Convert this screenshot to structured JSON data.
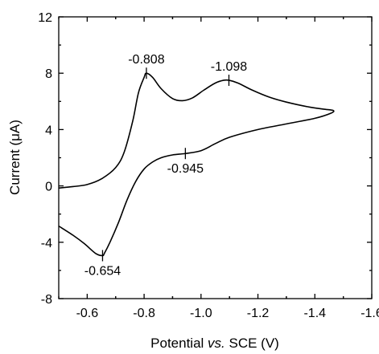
{
  "chart_data": {
    "type": "line",
    "xlabel_parts": [
      "Potential ",
      "vs.",
      " SCE (V)"
    ],
    "ylabel": "Current (μA)",
    "xlim": [
      -0.5,
      -1.6
    ],
    "ylim": [
      -8,
      12
    ],
    "x_ticks": [
      -0.6,
      -0.8,
      -1.0,
      -1.2,
      -1.4,
      -1.6
    ],
    "y_ticks": [
      -8,
      -4,
      0,
      4,
      8,
      12
    ],
    "x_tick_labels": [
      "-0.6",
      "-0.8",
      "-1.0",
      "-1.2",
      "-1.4",
      "-1.6"
    ],
    "y_tick_labels": [
      "-8",
      "-4",
      "0",
      "4",
      "8",
      "12"
    ],
    "grid": false,
    "series": [
      {
        "name": "",
        "points": [
          [
            -0.5,
            -0.15
          ],
          [
            -0.55,
            -0.05
          ],
          [
            -0.6,
            0.1
          ],
          [
            -0.65,
            0.5
          ],
          [
            -0.7,
            1.3
          ],
          [
            -0.73,
            2.4
          ],
          [
            -0.76,
            4.6
          ],
          [
            -0.78,
            6.6
          ],
          [
            -0.8,
            7.7
          ],
          [
            -0.808,
            8.0
          ],
          [
            -0.83,
            7.7
          ],
          [
            -0.86,
            6.9
          ],
          [
            -0.9,
            6.2
          ],
          [
            -0.935,
            6.05
          ],
          [
            -0.97,
            6.25
          ],
          [
            -1.01,
            6.8
          ],
          [
            -1.05,
            7.3
          ],
          [
            -1.08,
            7.5
          ],
          [
            -1.098,
            7.5
          ],
          [
            -1.13,
            7.3
          ],
          [
            -1.18,
            6.8
          ],
          [
            -1.24,
            6.3
          ],
          [
            -1.3,
            5.95
          ],
          [
            -1.38,
            5.6
          ],
          [
            -1.43,
            5.45
          ],
          [
            -1.465,
            5.35
          ],
          [
            -1.455,
            5.15
          ],
          [
            -1.4,
            4.8
          ],
          [
            -1.3,
            4.4
          ],
          [
            -1.2,
            4.0
          ],
          [
            -1.1,
            3.45
          ],
          [
            -1.05,
            3.0
          ],
          [
            -1.0,
            2.5
          ],
          [
            -0.945,
            2.3
          ],
          [
            -0.9,
            2.2
          ],
          [
            -0.86,
            2.0
          ],
          [
            -0.83,
            1.7
          ],
          [
            -0.8,
            1.2
          ],
          [
            -0.77,
            0.3
          ],
          [
            -0.74,
            -1.0
          ],
          [
            -0.71,
            -2.6
          ],
          [
            -0.68,
            -4.0
          ],
          [
            -0.66,
            -4.8
          ],
          [
            -0.654,
            -4.95
          ],
          [
            -0.63,
            -4.8
          ],
          [
            -0.59,
            -4.1
          ],
          [
            -0.55,
            -3.5
          ],
          [
            -0.5,
            -2.85
          ]
        ]
      }
    ],
    "annotations": [
      {
        "label": "-0.808",
        "x": -0.808,
        "y": 8.0,
        "placement": "above"
      },
      {
        "label": "-1.098",
        "x": -1.098,
        "y": 7.5,
        "placement": "above"
      },
      {
        "label": "-0.945",
        "x": -0.945,
        "y": 2.3,
        "placement": "below"
      },
      {
        "label": "-0.654",
        "x": -0.654,
        "y": -4.95,
        "placement": "below"
      }
    ]
  }
}
